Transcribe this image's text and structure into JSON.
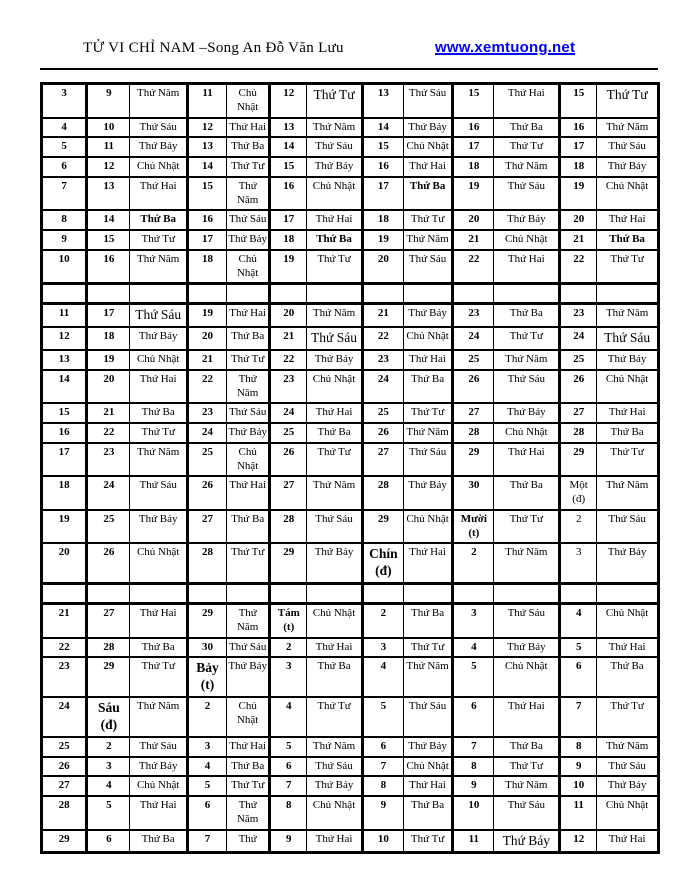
{
  "header": {
    "title": "TỬ VI CHỈ NAM –Song An Đỗ Văn Lưu",
    "link": "www.xemtuong.net",
    "link_color": "#0000ff"
  },
  "table": {
    "rows": [
      {
        "cells": [
          "3",
          "9",
          "Thứ Năm",
          "11",
          "Chủ Nhật",
          "12",
          "Thứ Tư",
          "13",
          "Thứ Sáu",
          "15",
          "Thứ Hai",
          "15",
          "Thứ Tư"
        ],
        "styles": {
          "6": "lg",
          "12": "lg"
        }
      },
      {
        "cells": [
          "4",
          "10",
          "Thứ Sáu",
          "12",
          "Thứ Hai",
          "13",
          "Thứ Năm",
          "14",
          "Thứ Bảy",
          "16",
          "Thứ Ba",
          "16",
          "Thứ Năm"
        ]
      },
      {
        "cells": [
          "5",
          "11",
          "Thứ Bảy",
          "13",
          "Thứ Ba",
          "14",
          "Thứ Sáu",
          "15",
          "Chủ Nhật",
          "17",
          "Thứ Tư",
          "17",
          "Thứ Sáu"
        ]
      },
      {
        "cells": [
          "6",
          "12",
          "Chủ Nhật",
          "14",
          "Thứ Tư",
          "15",
          "Thứ Bảy",
          "16",
          "Thứ Hai",
          "18",
          "Thứ Năm",
          "18",
          "Thứ Bảy"
        ]
      },
      {
        "cells": [
          "7",
          "13",
          "Thứ Hai",
          "15",
          "Thứ Năm",
          "16",
          "Chủ Nhật",
          "17",
          "Thứ Ba",
          "19",
          "Thứ Sáu",
          "19",
          "Chủ Nhật"
        ],
        "styles": {
          "8": "b"
        }
      },
      {
        "cells": [
          "8",
          "14",
          "Thứ Ba",
          "16",
          "Thứ Sáu",
          "17",
          "Thứ Hai",
          "18",
          "Thứ Tư",
          "20",
          "Thứ Bảy",
          "20",
          "Thứ Hai"
        ],
        "styles": {
          "2": "b"
        }
      },
      {
        "cells": [
          "9",
          "15",
          "Thứ Tư",
          "17",
          "Thứ Bảy",
          "18",
          "Thứ Ba",
          "19",
          "Thứ Năm",
          "21",
          "Chủ Nhật",
          "21",
          "Thứ Ba"
        ],
        "styles": {
          "6": "b",
          "12": "b"
        }
      },
      {
        "cells": [
          "10",
          "16",
          "Thứ Năm",
          "18",
          "Chủ Nhật",
          "19",
          "Thứ Tư",
          "20",
          "Thứ Sáu",
          "22",
          "Thứ Hai",
          "22",
          "Thứ Tư"
        ]
      },
      {
        "spacer": true
      },
      {
        "cells": [
          "11",
          "17",
          "Thứ Sáu",
          "19",
          "Thứ Hai",
          "20",
          "Thứ Năm",
          "21",
          "Thứ Bảy",
          "23",
          "Thứ Ba",
          "23",
          "Thứ Năm"
        ],
        "styles": {
          "2": "lg"
        }
      },
      {
        "cells": [
          "12",
          "18",
          "Thứ Bảy",
          "20",
          "Thứ Ba",
          "21",
          "Thứ Sáu",
          "22",
          "Chủ Nhật",
          "24",
          "Thứ Tư",
          "24",
          "Thứ Sáu"
        ],
        "styles": {
          "6": "lg",
          "12": "lg"
        }
      },
      {
        "cells": [
          "13",
          "19",
          "Chủ Nhật",
          "21",
          "Thứ Tư",
          "22",
          "Thứ Bảy",
          "23",
          "Thứ Hai",
          "25",
          "Thứ Năm",
          "25",
          "Thứ Bảy"
        ]
      },
      {
        "cells": [
          "14",
          "20",
          "Thứ Hai",
          "22",
          "Thứ Năm",
          "23",
          "Chủ Nhật",
          "24",
          "Thứ Ba",
          "26",
          "Thứ Sáu",
          "26",
          "Chủ Nhật"
        ]
      },
      {
        "cells": [
          "15",
          "21",
          "Thứ Ba",
          "23",
          "Thứ Sáu",
          "24",
          "Thứ Hai",
          "25",
          "Thứ Tư",
          "27",
          "Thứ Bảy",
          "27",
          "Thứ Hai"
        ]
      },
      {
        "cells": [
          "16",
          "22",
          "Thứ Tư",
          "24",
          "Thứ Bảy",
          "25",
          "Thứ Ba",
          "26",
          "Thứ Năm",
          "28",
          "Chủ Nhật",
          "28",
          "Thứ Ba"
        ]
      },
      {
        "cells": [
          "17",
          "23",
          "Thứ Năm",
          "25",
          "Chủ Nhật",
          "26",
          "Thứ Tư",
          "27",
          "Thứ Sáu",
          "29",
          "Thứ Hai",
          "29",
          "Thứ Tư"
        ]
      },
      {
        "cells": [
          "18",
          "24",
          "Thứ Sáu",
          "26",
          "Thứ Hai",
          "27",
          "Thứ Năm",
          "28",
          "Thứ Bảy",
          "30",
          "Thứ Ba",
          "Một (đ)",
          "Thứ Năm"
        ],
        "styles": {
          "11": "r"
        }
      },
      {
        "cells": [
          "19",
          "25",
          "Thứ Bảy",
          "27",
          "Thứ Ba",
          "28",
          "Thứ Sáu",
          "29",
          "Chủ Nhật",
          "Mười (t)",
          "Thứ Tư",
          "2",
          "Thứ Sáu"
        ],
        "styles": {
          "11": "r"
        }
      },
      {
        "cells": [
          "20",
          "26",
          "Chủ Nhật",
          "28",
          "Thứ Tư",
          "29",
          "Thứ Bảy",
          "Chín (đ)",
          "Thứ Hai",
          "2",
          "Thứ Năm",
          "3",
          "Thứ Bảy"
        ],
        "styles": {
          "7": "lg",
          "11": "r"
        }
      },
      {
        "spacer": true
      },
      {
        "cells": [
          "21",
          "27",
          "Thứ Hai",
          "29",
          "Thứ Năm",
          "Tám (t)",
          "Chủ Nhật",
          "2",
          "Thứ Ba",
          "3",
          "Thứ Sáu",
          "4",
          "Chủ Nhật"
        ]
      },
      {
        "cells": [
          "22",
          "28",
          "Thứ Ba",
          "30",
          "Thứ Sáu",
          "2",
          "Thứ Hai",
          "3",
          "Thứ Tư",
          "4",
          "Thứ Bảy",
          "5",
          "Thứ Hai"
        ]
      },
      {
        "cells": [
          "23",
          "29",
          "Thứ Tư",
          "Bảy (t)",
          "Thứ Bảy",
          "3",
          "Thứ Ba",
          "4",
          "Thứ Năm",
          "5",
          "Chủ Nhật",
          "6",
          "Thứ Ba"
        ],
        "styles": {
          "3": "lg"
        }
      },
      {
        "cells": [
          "24",
          "Sáu (đ)",
          "Thứ Năm",
          "2",
          "Chủ Nhật",
          "4",
          "Thứ Tư",
          "5",
          "Thứ Sáu",
          "6",
          "Thứ Hai",
          "7",
          "Thứ Tư"
        ],
        "styles": {
          "1": "lg"
        }
      },
      {
        "cells": [
          "25",
          "2",
          "Thứ Sáu",
          "3",
          "Thứ Hai",
          "5",
          "Thứ Năm",
          "6",
          "Thứ Bảy",
          "7",
          "Thứ Ba",
          "8",
          "Thứ Năm"
        ]
      },
      {
        "cells": [
          "26",
          "3",
          "Thứ Bảy",
          "4",
          "Thứ Ba",
          "6",
          "Thứ Sáu",
          "7",
          "Chủ Nhật",
          "8",
          "Thứ Tư",
          "9",
          "Thứ Sáu"
        ]
      },
      {
        "cells": [
          "27",
          "4",
          "Chủ Nhật",
          "5",
          "Thứ Tư",
          "7",
          "Thứ Bảy",
          "8",
          "Thứ Hai",
          "9",
          "Thứ Năm",
          "10",
          "Thứ Bảy"
        ]
      },
      {
        "cells": [
          "28",
          "5",
          "Thứ Hai",
          "6",
          "Thứ Năm",
          "8",
          "Chủ Nhật",
          "9",
          "Thứ Ba",
          "10",
          "Thứ Sáu",
          "11",
          "Chủ Nhật"
        ]
      },
      {
        "cells": [
          "29",
          "6",
          "Thứ Ba",
          "7",
          "Thứ",
          "9",
          "Thứ Hai",
          "10",
          "Thứ Tư",
          "11",
          "Thứ Bảy",
          "12",
          "Thứ Hai"
        ],
        "styles": {
          "10": "lg"
        }
      }
    ]
  }
}
